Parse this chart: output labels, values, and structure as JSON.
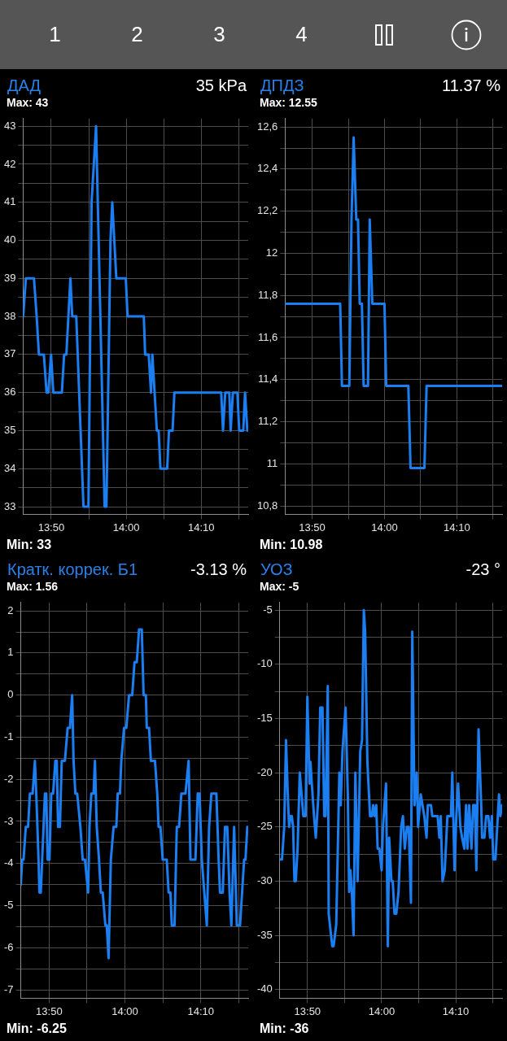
{
  "chart_data": [
    {
      "type": "line",
      "title": "ДАД",
      "subtitle": "35 kPa",
      "annotations": [
        "Max: 43",
        "Min: 33",
        "1",
        "2",
        "3",
        "4"
      ],
      "color": "#1b7ff2",
      "marker": "none",
      "grid": true,
      "x": [
        13.771,
        13.777,
        13.795,
        13.801,
        13.806,
        13.817,
        13.823,
        13.827,
        13.833,
        13.838,
        13.857,
        13.862,
        13.867,
        13.876,
        13.88,
        13.889,
        13.905,
        13.916,
        13.923,
        13.933,
        13.952,
        13.956,
        13.965,
        13.969,
        13.978,
        13.999,
        14.003,
        14.039,
        14.042,
        14.05,
        14.055,
        14.058,
        14.063,
        14.068,
        14.072,
        14.076,
        14.091,
        14.095,
        14.103,
        14.107,
        14.211,
        14.215,
        14.22,
        14.229,
        14.232,
        14.237,
        14.247,
        14.251,
        14.26,
        14.264,
        14.269,
        14.271
      ],
      "values": [
        38,
        39,
        39,
        38,
        37,
        37,
        36,
        36,
        37,
        36,
        36,
        37,
        37,
        39,
        38,
        38,
        33,
        33,
        41,
        43,
        33,
        33,
        40,
        41,
        39,
        39,
        38,
        38,
        37,
        37,
        36,
        37,
        36,
        35,
        35,
        34,
        34,
        35,
        35,
        36,
        36,
        35,
        36,
        36,
        35,
        36,
        36,
        35,
        35,
        36,
        35,
        35
      ],
      "xlim": [
        13.771,
        14.271
      ],
      "xticks": [
        {
          "value": 13.8333,
          "label": "13:50"
        },
        {
          "value": 13.9167,
          "label": null
        },
        {
          "value": 14,
          "label": "14:00"
        },
        {
          "value": 14.0833,
          "label": null
        },
        {
          "value": 14.1667,
          "label": "14:10"
        },
        {
          "value": 14.25,
          "label": null
        }
      ],
      "ylim": [
        32.8,
        43.2
      ],
      "yticks": [
        33,
        {
          "value": 33.5,
          "label": null
        },
        34,
        {
          "value": 34.5,
          "label": null
        },
        35,
        {
          "value": 35.5,
          "label": null
        },
        36,
        {
          "value": 36.5,
          "label": null
        },
        37,
        {
          "value": 37.5,
          "label": null
        },
        38,
        {
          "value": 38.5,
          "label": null
        },
        39,
        {
          "value": 39.5,
          "label": null
        },
        40,
        {
          "value": 40.5,
          "label": null
        },
        41,
        {
          "value": 41.5,
          "label": null
        },
        42,
        {
          "value": 42.5,
          "label": null
        },
        43
      ]
    },
    {
      "type": "line",
      "title": "ДПДЗ",
      "subtitle": "11.37 %",
      "annotations": [
        "Max: 12.55",
        "Min: 10.98"
      ],
      "color": "#1b7ff2",
      "marker": "none",
      "grid": true,
      "x": [
        13.771,
        13.898,
        13.902,
        13.919,
        13.924,
        13.929,
        13.935,
        13.939,
        13.943,
        13.948,
        13.952,
        13.962,
        13.966,
        13.972,
        14,
        14.004,
        14.055,
        14.06,
        14.092,
        14.097,
        14.271
      ],
      "values": [
        11.76,
        11.76,
        11.37,
        11.37,
        12.16,
        12.55,
        12.16,
        12.16,
        11.76,
        11.76,
        11.37,
        11.37,
        12.16,
        11.76,
        11.76,
        11.37,
        11.37,
        10.98,
        10.98,
        11.37,
        11.37
      ],
      "xlim": [
        13.771,
        14.271
      ],
      "xticks": [
        {
          "value": 13.8333,
          "label": "13:50"
        },
        {
          "value": 13.9167,
          "label": null
        },
        {
          "value": 14,
          "label": "14:00"
        },
        {
          "value": 14.0833,
          "label": null
        },
        {
          "value": 14.1667,
          "label": "14:10"
        },
        {
          "value": 14.25,
          "label": null
        }
      ],
      "ylim": [
        10.76,
        12.64
      ],
      "yticks": [
        {
          "value": 10.8,
          "label": "10,8"
        },
        {
          "value": 10.9,
          "label": null
        },
        11,
        {
          "value": 11.1,
          "label": null
        },
        {
          "value": 11.2,
          "label": "11,2"
        },
        {
          "value": 11.3,
          "label": null
        },
        {
          "value": 11.4,
          "label": "11,4"
        },
        {
          "value": 11.5,
          "label": null
        },
        {
          "value": 11.6,
          "label": "11,6"
        },
        {
          "value": 11.7,
          "label": null
        },
        {
          "value": 11.8,
          "label": "11,8"
        },
        {
          "value": 11.9,
          "label": null
        },
        12,
        {
          "value": 12.1,
          "label": null
        },
        {
          "value": 12.2,
          "label": "12,2"
        },
        {
          "value": 12.3,
          "label": null
        },
        {
          "value": 12.4,
          "label": "12,4"
        },
        {
          "value": 12.5,
          "label": null
        },
        {
          "value": 12.6,
          "label": "12,6"
        }
      ]
    },
    {
      "type": "line",
      "title": "Кратк. коррек. Б1",
      "subtitle": "-3.13 %",
      "annotations": [
        "Max: 1.56",
        "Min: -6.25"
      ],
      "color": "#1b7ff2",
      "marker": "none",
      "grid": true,
      "x": [
        13.771,
        13.774,
        13.777,
        13.782,
        13.787,
        13.791,
        13.797,
        13.802,
        13.805,
        13.81,
        13.812,
        13.815,
        13.821,
        13.824,
        13.827,
        13.83,
        13.834,
        13.838,
        13.842,
        13.847,
        13.85,
        13.853,
        13.857,
        13.861,
        13.868,
        13.874,
        13.879,
        13.884,
        13.887,
        13.891,
        13.895,
        13.902,
        13.907,
        13.912,
        13.919,
        13.922,
        13.926,
        13.931,
        13.934,
        13.938,
        13.943,
        13.947,
        13.951,
        13.957,
        13.96,
        13.964,
        13.969,
        13.975,
        13.981,
        13.984,
        13.989,
        13.992,
        13.998,
        14.003,
        14.009,
        14.016,
        14.021,
        14.026,
        14.031,
        14.037,
        14.041,
        14.046,
        14.048,
        14.053,
        14.057,
        14.066,
        14.071,
        14.074,
        14.078,
        14.083,
        14.092,
        14.096,
        14.1,
        14.103,
        14.109,
        14.114,
        14.119,
        14.124,
        14.133,
        14.14,
        14.144,
        14.155,
        14.16,
        14.164,
        14.169,
        14.18,
        14.185,
        14.19,
        14.201,
        14.206,
        14.209,
        14.215,
        14.22,
        14.225,
        14.23,
        14.234,
        14.24,
        14.246,
        14.253,
        14.262,
        14.265,
        14.269,
        14.271
      ],
      "values": [
        -4.5,
        -3.91,
        -3.91,
        -3.13,
        -3.13,
        -2.34,
        -2.34,
        -1.56,
        -2.34,
        -3.91,
        -4.69,
        -4.69,
        -3.13,
        -2.34,
        -2.34,
        -3.91,
        -3.91,
        -2.34,
        -2.34,
        -1.56,
        -1.56,
        -3.13,
        -3.13,
        -1.56,
        -1.56,
        -0.78,
        -0.78,
        0,
        -1.56,
        -2.34,
        -2.34,
        -3.13,
        -3.91,
        -3.91,
        -4.69,
        -3.13,
        -2.34,
        -2.34,
        -1.56,
        -3.13,
        -3.91,
        -4.69,
        -4.69,
        -5.47,
        -5.47,
        -6.25,
        -3.91,
        -3.13,
        -3.13,
        -2.34,
        -2.34,
        -1.56,
        -0.78,
        -0.78,
        0,
        0,
        0.78,
        0.78,
        1.56,
        1.56,
        0,
        0,
        -0.78,
        -0.78,
        -1.56,
        -1.56,
        -2.34,
        -3.13,
        -3.13,
        -3.91,
        -3.91,
        -4.69,
        -4.69,
        -5.47,
        -5.47,
        -3.13,
        -3.13,
        -2.34,
        -2.34,
        -1.56,
        -3.91,
        -3.91,
        -2.34,
        -2.34,
        -3.91,
        -5.47,
        -3.13,
        -2.34,
        -2.34,
        -3.91,
        -4.69,
        -4.69,
        -3.13,
        -3.13,
        -4.69,
        -5.47,
        -3.13,
        -5.47,
        -5.47,
        -3.91,
        -3.91,
        -3.13,
        -3.13
      ],
      "xlim": [
        13.771,
        14.271
      ],
      "xticks": [
        {
          "value": 13.8333,
          "label": "13:50"
        },
        {
          "value": 13.9167,
          "label": null
        },
        {
          "value": 14,
          "label": "14:00"
        },
        {
          "value": 14.0833,
          "label": null
        },
        {
          "value": 14.1667,
          "label": "14:10"
        },
        {
          "value": 14.25,
          "label": null
        }
      ],
      "ylim": [
        -7.2,
        2.2
      ],
      "yticks": [
        -7,
        {
          "value": -6.5,
          "label": null
        },
        -6,
        {
          "value": -5.5,
          "label": null
        },
        -5,
        {
          "value": -4.5,
          "label": null
        },
        -4,
        {
          "value": -3.5,
          "label": null
        },
        -3,
        {
          "value": -2.5,
          "label": null
        },
        -2,
        {
          "value": -1.5,
          "label": null
        },
        -1,
        {
          "value": -0.5,
          "label": null
        },
        0,
        {
          "value": 0.5,
          "label": null
        },
        1,
        {
          "value": 1.5,
          "label": null
        },
        2
      ]
    },
    {
      "type": "line",
      "title": "УОЗ",
      "subtitle": "-23 °",
      "annotations": [
        "Max: -5",
        "Min: -36"
      ],
      "color": "#1b7ff2",
      "marker": "none",
      "grid": true,
      "x": [
        13.771,
        13.776,
        13.781,
        13.785,
        13.789,
        13.792,
        13.795,
        13.798,
        13.801,
        13.804,
        13.807,
        13.811,
        13.816,
        13.82,
        13.824,
        13.829,
        13.833,
        13.838,
        13.84,
        13.843,
        13.848,
        13.852,
        13.858,
        13.862,
        13.867,
        13.871,
        13.874,
        13.879,
        13.881,
        13.889,
        13.892,
        13.898,
        13.905,
        13.908,
        13.912,
        13.919,
        13.924,
        13.927,
        13.93,
        13.933,
        13.937,
        13.941,
        13.946,
        13.952,
        13.956,
        13.96,
        13.963,
        13.968,
        13.974,
        13.978,
        13.981,
        13.984,
        13.988,
        13.991,
        13.995,
        14,
        14.003,
        14.01,
        14.014,
        14.017,
        14.022,
        14.025,
        14.029,
        14.033,
        14.038,
        14.044,
        14.048,
        14.052,
        14.057,
        14.061,
        14.066,
        14.069,
        14.074,
        14.079,
        14.082,
        14.088,
        14.092,
        14.096,
        14.101,
        14.104,
        14.111,
        14.114,
        14.126,
        14.13,
        14.133,
        14.137,
        14.142,
        14.148,
        14.156,
        14.159,
        14.164,
        14.168,
        14.172,
        14.177,
        14.181,
        14.186,
        14.19,
        14.193,
        14.197,
        14.202,
        14.206,
        14.21,
        14.213,
        14.218,
        14.224,
        14.226,
        14.231,
        14.235,
        14.24,
        14.244,
        14.248,
        14.251,
        14.256,
        14.26,
        14.264,
        14.267,
        14.271
      ],
      "values": [
        -28,
        -28,
        -25,
        -17,
        -22,
        -25,
        -24,
        -24,
        -25,
        -30,
        -30,
        -27,
        -20,
        -22,
        -24,
        -24,
        -13,
        -21,
        -19,
        -21,
        -24,
        -26,
        -22,
        -14,
        -14,
        -24,
        -24,
        -12,
        -33,
        -36,
        -36,
        -34,
        -20,
        -23,
        -18,
        -14,
        -22,
        -31,
        -29,
        -31,
        -35,
        -20,
        -30,
        -18,
        -17,
        -5,
        -7,
        -19,
        -24,
        -24,
        -23,
        -24,
        -23,
        -27,
        -27,
        -29,
        -25,
        -21,
        -36,
        -26,
        -30,
        -30,
        -33,
        -33,
        -31,
        -25,
        -24,
        -27,
        -25,
        -25,
        -32,
        -7,
        -23,
        -20,
        -25,
        -22,
        -23,
        -24,
        -26,
        -23,
        -23,
        -24,
        -24,
        -26,
        -24,
        -30,
        -29,
        -24,
        -24,
        -20,
        -29,
        -24,
        -21,
        -25,
        -26,
        -27,
        -23,
        -27,
        -23,
        -27,
        -23,
        -23,
        -29,
        -16,
        -23,
        -26,
        -26,
        -24,
        -24,
        -26,
        -24,
        -28,
        -28,
        -25,
        -22,
        -24,
        -23
      ],
      "xlim": [
        13.771,
        14.271
      ],
      "xticks": [
        {
          "value": 13.8333,
          "label": "13:50"
        },
        {
          "value": 13.9167,
          "label": null
        },
        {
          "value": 14,
          "label": "14:00"
        },
        {
          "value": 14.0833,
          "label": null
        },
        {
          "value": 14.1667,
          "label": "14:10"
        },
        {
          "value": 14.25,
          "label": null
        }
      ],
      "ylim": [
        -40.8,
        -4.3
      ],
      "yticks": [
        -40,
        {
          "value": -37.5,
          "label": null
        },
        -35,
        {
          "value": -32.5,
          "label": null
        },
        -30,
        {
          "value": -27.5,
          "label": null
        },
        -25,
        {
          "value": -22.5,
          "label": null
        },
        -20,
        {
          "value": -17.5,
          "label": null
        },
        -15,
        {
          "value": -12.5,
          "label": null
        },
        -10,
        {
          "value": -7.5,
          "label": null
        },
        -5
      ]
    }
  ]
}
